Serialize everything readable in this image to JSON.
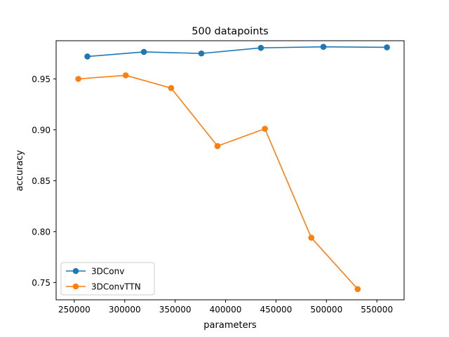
{
  "chart_data": {
    "type": "line",
    "title": "500 datapoints",
    "xlabel": "parameters",
    "ylabel": "accuracy",
    "xlim": [
      232000,
      577000
    ],
    "ylim": [
      0.733,
      0.9875
    ],
    "x_ticks": [
      250000,
      300000,
      350000,
      400000,
      450000,
      500000,
      550000
    ],
    "x_tick_labels": [
      "250000",
      "300000",
      "350000",
      "400000",
      "450000",
      "500000",
      "550000"
    ],
    "y_ticks": [
      0.75,
      0.8,
      0.85,
      0.9,
      0.95
    ],
    "y_tick_labels": [
      "0.75",
      "0.80",
      "0.85",
      "0.90",
      "0.95"
    ],
    "grid": false,
    "legend_position": "lower-left",
    "series": [
      {
        "name": "3DConv",
        "color": "#1f77b4",
        "marker": "circle",
        "x": [
          263000,
          319000,
          376000,
          435000,
          497000,
          560000
        ],
        "y": [
          0.972,
          0.9765,
          0.975,
          0.9805,
          0.9815,
          0.981
        ]
      },
      {
        "name": "3DConvTTN",
        "color": "#ff7f0e",
        "marker": "circle",
        "x": [
          254000,
          301000,
          346000,
          392000,
          439000,
          485000,
          531000
        ],
        "y": [
          0.95,
          0.9535,
          0.941,
          0.884,
          0.901,
          0.794,
          0.7435
        ]
      }
    ]
  }
}
